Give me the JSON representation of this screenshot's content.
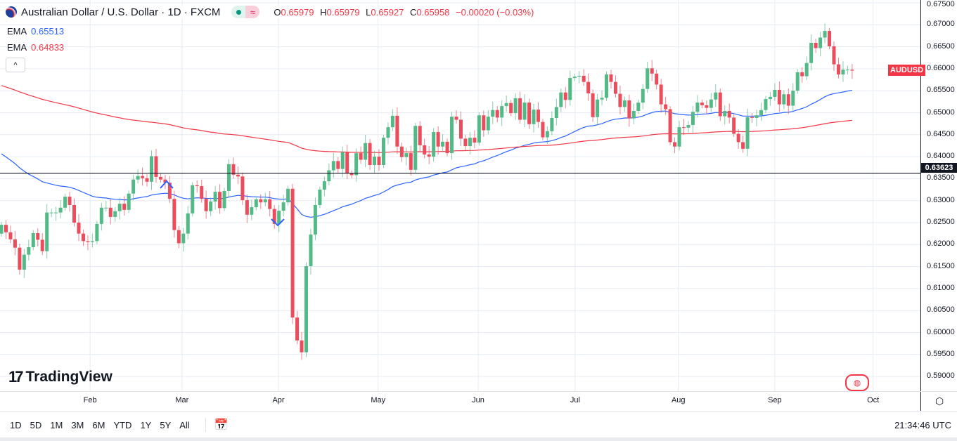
{
  "header": {
    "title": "Australian Dollar / U.S. Dollar · 1D · FXCM",
    "ohlc": {
      "o_label": "O",
      "o": "0.65979",
      "h_label": "H",
      "h": "0.65979",
      "l_label": "L",
      "l": "0.65927",
      "c_label": "C",
      "c": "0.65958",
      "change": "−0.00020 (−0.03%)"
    },
    "market_status_icon": "green-dot",
    "compare_icon": "≈"
  },
  "indicators": [
    {
      "label": "EMA",
      "value": "0.65513",
      "color": "#2962ff"
    },
    {
      "label": "EMA",
      "value": "0.64833",
      "color": "#f23645"
    }
  ],
  "collapse_icon": "^",
  "logo": {
    "mark": "17",
    "text": "TradingView"
  },
  "symbol_label": "AUDUSD",
  "crosshair_price": "0.63623",
  "time_range": {
    "buttons": [
      "1D",
      "5D",
      "1M",
      "3M",
      "6M",
      "YTD",
      "1Y",
      "5Y",
      "All"
    ],
    "calendar_icon": "calendar",
    "clock": "21:34:46 UTC"
  },
  "badge_icon": "flag-globe",
  "chart_data": {
    "type": "candlestick",
    "title": "Australian Dollar / U.S. Dollar · 1D · FXCM",
    "ylim": [
      0.5875,
      0.6755
    ],
    "yticks": [
      "0.67500",
      "0.67000",
      "0.66500",
      "0.66000",
      "0.65500",
      "0.65000",
      "0.64500",
      "0.64000",
      "0.63500",
      "0.63000",
      "0.62500",
      "0.62000",
      "0.61500",
      "0.61000",
      "0.60500",
      "0.60000",
      "0.59500",
      "0.59000"
    ],
    "ytick_values": [
      0.675,
      0.67,
      0.665,
      0.66,
      0.655,
      0.65,
      0.645,
      0.64,
      0.635,
      0.63,
      0.625,
      0.62,
      0.615,
      0.61,
      0.605,
      0.6,
      0.595,
      0.59
    ],
    "xticks": [
      {
        "label": "Feb",
        "bar": 19.5
      },
      {
        "label": "Mar",
        "bar": 39.7
      },
      {
        "label": "Apr",
        "bar": 60.9
      },
      {
        "label": "May",
        "bar": 82.8
      },
      {
        "label": "Jun",
        "bar": 104.8
      },
      {
        "label": "Jul",
        "bar": 126.1
      },
      {
        "label": "Aug",
        "bar": 148.8
      },
      {
        "label": "Sep",
        "bar": 170
      },
      {
        "label": "Oct",
        "bar": 191.6
      }
    ],
    "first_open": 0.6225,
    "closes": [
      0.6245,
      0.6228,
      0.6212,
      0.6193,
      0.6143,
      0.6177,
      0.6194,
      0.6226,
      0.6211,
      0.6185,
      0.6273,
      0.6273,
      0.6273,
      0.6284,
      0.6309,
      0.629,
      0.625,
      0.6225,
      0.6208,
      0.6206,
      0.6208,
      0.6247,
      0.6284,
      0.6284,
      0.6263,
      0.6276,
      0.6293,
      0.6279,
      0.6316,
      0.6348,
      0.6356,
      0.6351,
      0.6343,
      0.6401,
      0.6354,
      0.6348,
      0.6341,
      0.6304,
      0.6233,
      0.6203,
      0.6225,
      0.6271,
      0.6335,
      0.6333,
      0.6304,
      0.6276,
      0.6298,
      0.632,
      0.6283,
      0.6322,
      0.6383,
      0.6359,
      0.6355,
      0.6301,
      0.6268,
      0.6285,
      0.6303,
      0.6296,
      0.6303,
      0.6281,
      0.6247,
      0.6277,
      0.6296,
      0.6327,
      0.6034,
      0.5982,
      0.5955,
      0.6151,
      0.6223,
      0.629,
      0.6325,
      0.6344,
      0.6369,
      0.639,
      0.6372,
      0.641,
      0.6362,
      0.6358,
      0.6408,
      0.6393,
      0.6431,
      0.6381,
      0.64,
      0.6381,
      0.6443,
      0.6467,
      0.6493,
      0.6423,
      0.6399,
      0.6408,
      0.637,
      0.647,
      0.6426,
      0.6405,
      0.64,
      0.6456,
      0.6423,
      0.6434,
      0.6408,
      0.6491,
      0.6484,
      0.6441,
      0.6424,
      0.6443,
      0.6432,
      0.6494,
      0.646,
      0.6491,
      0.6506,
      0.6489,
      0.6515,
      0.6522,
      0.6499,
      0.6533,
      0.6484,
      0.6523,
      0.6474,
      0.6507,
      0.6479,
      0.6444,
      0.6458,
      0.6488,
      0.6513,
      0.6546,
      0.6529,
      0.6579,
      0.6582,
      0.6584,
      0.657,
      0.6544,
      0.649,
      0.653,
      0.6534,
      0.6587,
      0.657,
      0.6543,
      0.6513,
      0.6528,
      0.6487,
      0.6504,
      0.6523,
      0.6554,
      0.6601,
      0.6589,
      0.6564,
      0.6519,
      0.6508,
      0.6433,
      0.6423,
      0.6467,
      0.6466,
      0.6472,
      0.6502,
      0.6523,
      0.6517,
      0.6511,
      0.653,
      0.6546,
      0.6492,
      0.6504,
      0.6489,
      0.6452,
      0.6433,
      0.6418,
      0.649,
      0.6488,
      0.6494,
      0.6506,
      0.6531,
      0.6536,
      0.6552,
      0.6519,
      0.6542,
      0.6516,
      0.655,
      0.6592,
      0.6583,
      0.6613,
      0.6659,
      0.6647,
      0.6671,
      0.6686,
      0.6651,
      0.661,
      0.6587,
      0.6598,
      0.6598,
      0.65958
    ],
    "series": [
      {
        "name": "EMA",
        "period": 50,
        "seed": 0.6413,
        "color": "#2962ff",
        "last": 0.65513
      },
      {
        "name": "EMA",
        "period": 200,
        "seed": 0.6565,
        "color": "#f23645",
        "last": 0.64833
      }
    ],
    "horizontal_line": 0.63623,
    "colors": {
      "up": "#53b987",
      "down": "#eb4d5c",
      "grid": "#e6ecf2"
    }
  }
}
